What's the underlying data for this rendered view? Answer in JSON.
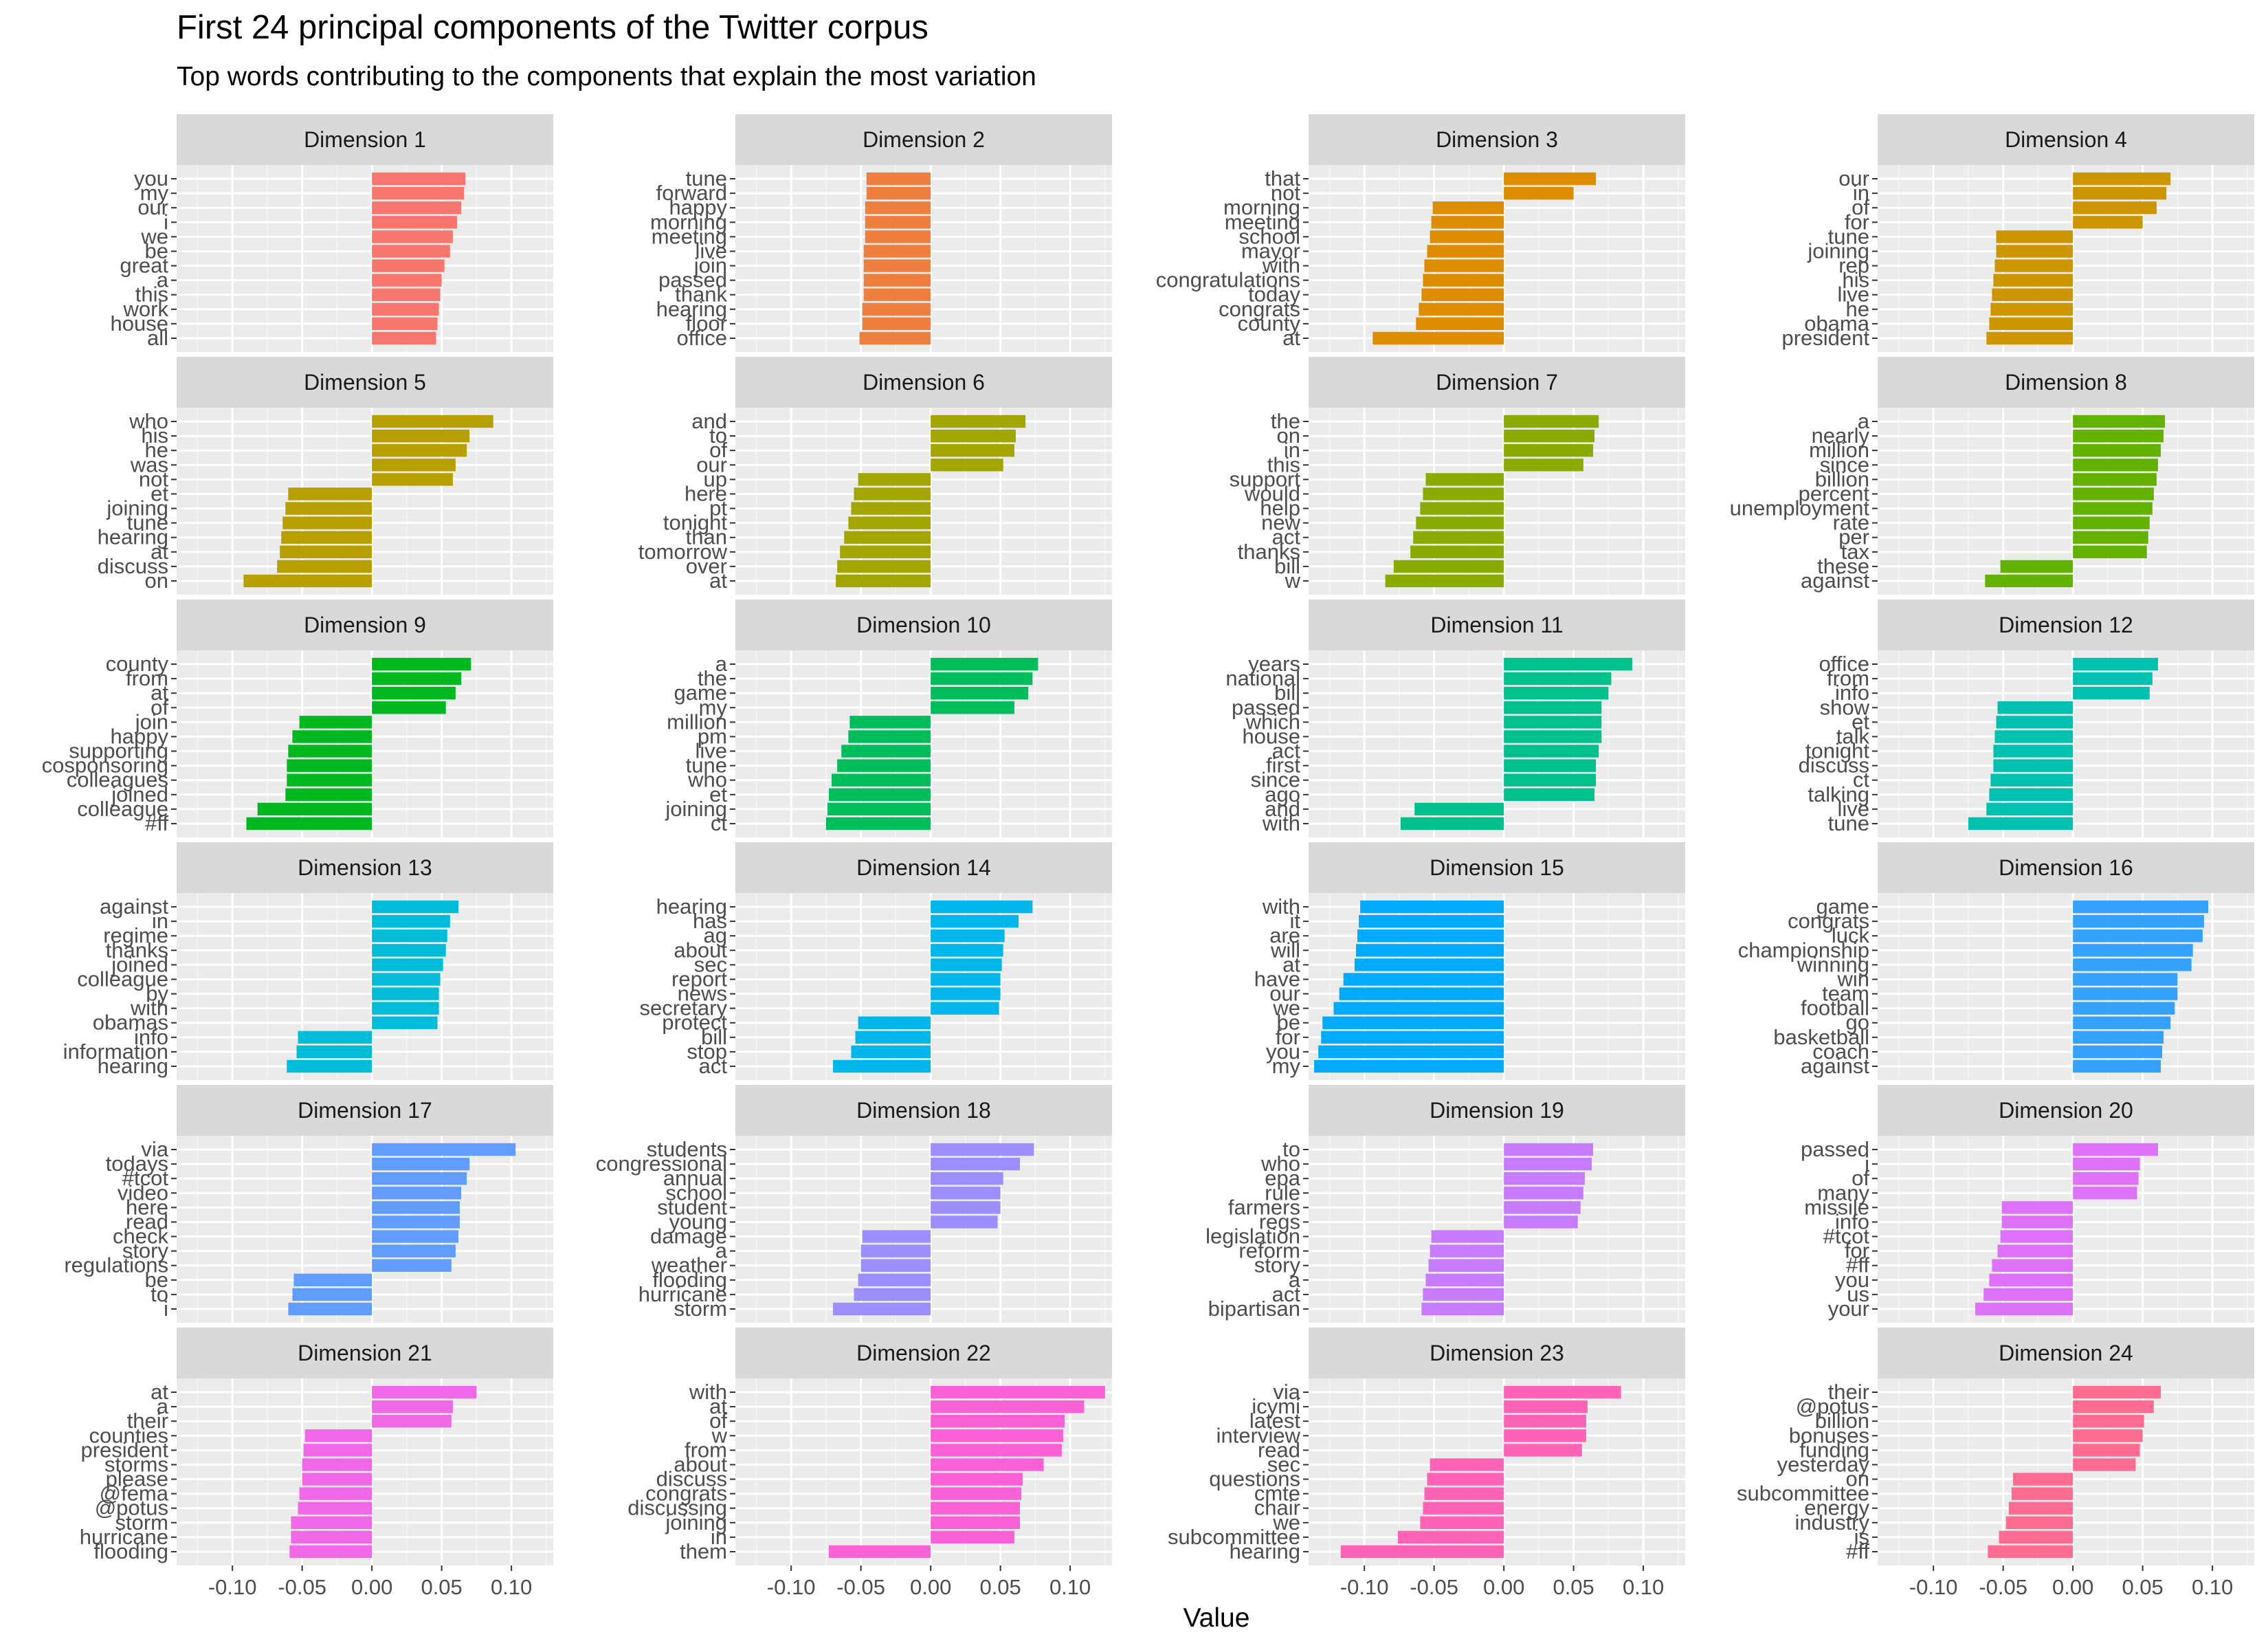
{
  "title": "First 24 principal components of the Twitter corpus",
  "subtitle": "Top words contributing to the components that explain the most variation",
  "chart_data": {
    "type": "bar",
    "orientation": "horizontal",
    "facet_layout": "6 rows x 4 columns",
    "xlabel": "Value",
    "ylabel": "",
    "xlim": [
      -0.14,
      0.13
    ],
    "xticks": [
      "-0.10",
      "-0.05",
      "0.00",
      "0.05",
      "0.10"
    ],
    "xtick_values": [
      -0.1,
      -0.05,
      0.0,
      0.05,
      0.1
    ],
    "grid": true,
    "legend": "none",
    "panels": [
      {
        "title": "Dimension 1",
        "color": "#F8766D",
        "words": [
          "you",
          "my",
          "our",
          "i",
          "we",
          "be",
          "great",
          "a",
          "this",
          "work",
          "house",
          "all"
        ],
        "values": [
          0.067,
          0.066,
          0.064,
          0.061,
          0.058,
          0.056,
          0.052,
          0.05,
          0.049,
          0.048,
          0.047,
          0.046
        ]
      },
      {
        "title": "Dimension 2",
        "color": "#EF7F3F",
        "words": [
          "tune",
          "forward",
          "happy",
          "morning",
          "meeting",
          "live",
          "join",
          "passed",
          "thank",
          "hearing",
          "floor",
          "office"
        ],
        "values": [
          -0.046,
          -0.046,
          -0.047,
          -0.047,
          -0.047,
          -0.048,
          -0.048,
          -0.048,
          -0.048,
          -0.049,
          -0.049,
          -0.051
        ]
      },
      {
        "title": "Dimension 3",
        "color": "#DE8C00",
        "words": [
          "that",
          "not",
          "morning",
          "meeting",
          "school",
          "mayor",
          "with",
          "congratulations",
          "today",
          "congrats",
          "county",
          "at"
        ],
        "values": [
          0.066,
          0.05,
          -0.051,
          -0.052,
          -0.053,
          -0.055,
          -0.057,
          -0.058,
          -0.059,
          -0.061,
          -0.063,
          -0.094
        ]
      },
      {
        "title": "Dimension 4",
        "color": "#CD9600",
        "words": [
          "our",
          "in",
          "of",
          "for",
          "tune",
          "joining",
          "rep",
          "his",
          "live",
          "he",
          "obama",
          "president"
        ],
        "values": [
          0.07,
          0.067,
          0.06,
          0.05,
          -0.055,
          -0.055,
          -0.056,
          -0.057,
          -0.058,
          -0.059,
          -0.06,
          -0.062
        ]
      },
      {
        "title": "Dimension 5",
        "color": "#B79F00",
        "words": [
          "who",
          "his",
          "he",
          "was",
          "not",
          "et",
          "joining",
          "tune",
          "hearing",
          "at",
          "discuss",
          "on"
        ],
        "values": [
          0.087,
          0.07,
          0.068,
          0.06,
          0.058,
          -0.06,
          -0.062,
          -0.064,
          -0.065,
          -0.066,
          -0.068,
          -0.092
        ]
      },
      {
        "title": "Dimension 6",
        "color": "#A3A500",
        "words": [
          "and",
          "to",
          "of",
          "our",
          "up",
          "here",
          "pt",
          "tonight",
          "than",
          "tomorrow",
          "over",
          "at"
        ],
        "values": [
          0.068,
          0.061,
          0.06,
          0.052,
          -0.052,
          -0.055,
          -0.057,
          -0.059,
          -0.062,
          -0.065,
          -0.067,
          -0.068
        ]
      },
      {
        "title": "Dimension 7",
        "color": "#8AAB00",
        "words": [
          "the",
          "on",
          "in",
          "this",
          "support",
          "would",
          "help",
          "new",
          "act",
          "thanks",
          "bill",
          "w"
        ],
        "values": [
          0.068,
          0.065,
          0.064,
          0.057,
          -0.056,
          -0.058,
          -0.06,
          -0.063,
          -0.065,
          -0.067,
          -0.079,
          -0.085
        ]
      },
      {
        "title": "Dimension 8",
        "color": "#64B200",
        "words": [
          "a",
          "nearly",
          "million",
          "since",
          "billion",
          "percent",
          "unemployment",
          "rate",
          "per",
          "tax",
          "these",
          "against"
        ],
        "values": [
          0.066,
          0.065,
          0.063,
          0.061,
          0.06,
          0.058,
          0.057,
          0.055,
          0.054,
          0.053,
          -0.052,
          -0.063
        ]
      },
      {
        "title": "Dimension 9",
        "color": "#00B81F",
        "words": [
          "county",
          "from",
          "at",
          "of",
          "join",
          "happy",
          "supporting",
          "cosponsoring",
          "colleagues",
          "joined",
          "colleague",
          "#ff"
        ],
        "values": [
          0.071,
          0.064,
          0.06,
          0.053,
          -0.052,
          -0.057,
          -0.06,
          -0.061,
          -0.061,
          -0.062,
          -0.082,
          -0.09
        ]
      },
      {
        "title": "Dimension 10",
        "color": "#00BD5C",
        "words": [
          "a",
          "the",
          "game",
          "my",
          "million",
          "pm",
          "live",
          "tune",
          "who",
          "et",
          "joining",
          "ct"
        ],
        "values": [
          0.077,
          0.073,
          0.07,
          0.06,
          -0.058,
          -0.059,
          -0.064,
          -0.067,
          -0.071,
          -0.073,
          -0.074,
          -0.075
        ]
      },
      {
        "title": "Dimension 11",
        "color": "#00C08B",
        "words": [
          "years",
          "national",
          "bill",
          "passed",
          "which",
          "house",
          "act",
          "first",
          "since",
          "ago",
          "and",
          "with"
        ],
        "values": [
          0.092,
          0.077,
          0.075,
          0.07,
          0.07,
          0.07,
          0.068,
          0.066,
          0.066,
          0.065,
          -0.064,
          -0.074
        ]
      },
      {
        "title": "Dimension 12",
        "color": "#00C0AF",
        "words": [
          "office",
          "from",
          "info",
          "show",
          "et",
          "talk",
          "tonight",
          "discuss",
          "ct",
          "talking",
          "live",
          "tune"
        ],
        "values": [
          0.061,
          0.057,
          0.055,
          -0.054,
          -0.055,
          -0.056,
          -0.057,
          -0.057,
          -0.059,
          -0.06,
          -0.062,
          -0.075
        ]
      },
      {
        "title": "Dimension 13",
        "color": "#00BCD8",
        "words": [
          "against",
          "in",
          "regime",
          "thanks",
          "joined",
          "colleague",
          "by",
          "with",
          "obamas",
          "info",
          "information",
          "hearing"
        ],
        "values": [
          0.062,
          0.056,
          0.054,
          0.053,
          0.051,
          0.049,
          0.048,
          0.048,
          0.047,
          -0.053,
          -0.054,
          -0.061
        ]
      },
      {
        "title": "Dimension 14",
        "color": "#00B6EB",
        "words": [
          "hearing",
          "has",
          "ag",
          "about",
          "sec",
          "report",
          "news",
          "secretary",
          "protect",
          "bill",
          "stop",
          "act"
        ],
        "values": [
          0.073,
          0.063,
          0.053,
          0.052,
          0.051,
          0.05,
          0.05,
          0.049,
          -0.052,
          -0.054,
          -0.057,
          -0.07
        ]
      },
      {
        "title": "Dimension 15",
        "color": "#00ABFD",
        "words": [
          "with",
          "it",
          "are",
          "will",
          "at",
          "have",
          "our",
          "we",
          "be",
          "for",
          "you",
          "my"
        ],
        "values": [
          -0.103,
          -0.104,
          -0.105,
          -0.106,
          -0.107,
          -0.115,
          -0.118,
          -0.122,
          -0.13,
          -0.131,
          -0.133,
          -0.136
        ]
      },
      {
        "title": "Dimension 16",
        "color": "#35A2FF",
        "words": [
          "game",
          "congrats",
          "luck",
          "championship",
          "winning",
          "win",
          "team",
          "football",
          "go",
          "basketball",
          "coach",
          "against"
        ],
        "values": [
          0.097,
          0.094,
          0.093,
          0.086,
          0.085,
          0.075,
          0.075,
          0.073,
          0.07,
          0.065,
          0.064,
          0.063
        ]
      },
      {
        "title": "Dimension 17",
        "color": "#619CFF",
        "words": [
          "via",
          "todays",
          "#tcot",
          "video",
          "here",
          "read",
          "check",
          "story",
          "regulations",
          "be",
          "to",
          "i"
        ],
        "values": [
          0.103,
          0.07,
          0.068,
          0.064,
          0.063,
          0.063,
          0.062,
          0.06,
          0.057,
          -0.056,
          -0.057,
          -0.06
        ]
      },
      {
        "title": "Dimension 18",
        "color": "#9D8EFF",
        "words": [
          "students",
          "congressional",
          "annual",
          "school",
          "student",
          "young",
          "damage",
          "a",
          "weather",
          "flooding",
          "hurricane",
          "storm"
        ],
        "values": [
          0.074,
          0.064,
          0.052,
          0.05,
          0.05,
          0.048,
          -0.049,
          -0.05,
          -0.05,
          -0.052,
          -0.055,
          -0.07
        ]
      },
      {
        "title": "Dimension 19",
        "color": "#C77CFF",
        "words": [
          "to",
          "who",
          "epa",
          "rule",
          "farmers",
          "regs",
          "legislation",
          "reform",
          "story",
          "a",
          "act",
          "bipartisan"
        ],
        "values": [
          0.064,
          0.063,
          0.058,
          0.057,
          0.055,
          0.053,
          -0.052,
          -0.053,
          -0.054,
          -0.056,
          -0.058,
          -0.059
        ]
      },
      {
        "title": "Dimension 20",
        "color": "#DE71F9",
        "words": [
          "passed",
          "i",
          "of",
          "many",
          "missile",
          "info",
          "#tcot",
          "for",
          "#ff",
          "you",
          "us",
          "your"
        ],
        "values": [
          0.061,
          0.048,
          0.047,
          0.046,
          -0.051,
          -0.051,
          -0.052,
          -0.054,
          -0.058,
          -0.06,
          -0.064,
          -0.07
        ]
      },
      {
        "title": "Dimension 21",
        "color": "#F067E8",
        "words": [
          "at",
          "a",
          "their",
          "counties",
          "president",
          "storms",
          "please",
          "@fema",
          "@potus",
          "storm",
          "hurricane",
          "flooding"
        ],
        "values": [
          0.075,
          0.058,
          0.057,
          -0.048,
          -0.049,
          -0.05,
          -0.05,
          -0.052,
          -0.053,
          -0.058,
          -0.058,
          -0.059
        ]
      },
      {
        "title": "Dimension 22",
        "color": "#FB61D7",
        "words": [
          "with",
          "at",
          "of",
          "w",
          "from",
          "about",
          "discuss",
          "congrats",
          "discussing",
          "joining",
          "in",
          "them"
        ],
        "values": [
          0.125,
          0.11,
          0.096,
          0.095,
          0.094,
          0.081,
          0.066,
          0.065,
          0.064,
          0.064,
          0.06,
          -0.073
        ]
      },
      {
        "title": "Dimension 23",
        "color": "#FF63B6",
        "words": [
          "via",
          "icymi",
          "latest",
          "interview",
          "read",
          "sec",
          "questions",
          "cmte",
          "chair",
          "we",
          "subcommittee",
          "hearing"
        ],
        "values": [
          0.084,
          0.06,
          0.059,
          0.059,
          0.056,
          -0.053,
          -0.055,
          -0.057,
          -0.058,
          -0.06,
          -0.076,
          -0.117
        ]
      },
      {
        "title": "Dimension 24",
        "color": "#FF6C91",
        "words": [
          "their",
          "@potus",
          "billion",
          "bonuses",
          "funding",
          "yesterday",
          "on",
          "subcommittee",
          "energy",
          "industry",
          "is",
          "#ff"
        ],
        "values": [
          0.063,
          0.058,
          0.051,
          0.05,
          0.048,
          0.045,
          -0.043,
          -0.044,
          -0.046,
          -0.048,
          -0.053,
          -0.061
        ]
      }
    ]
  }
}
